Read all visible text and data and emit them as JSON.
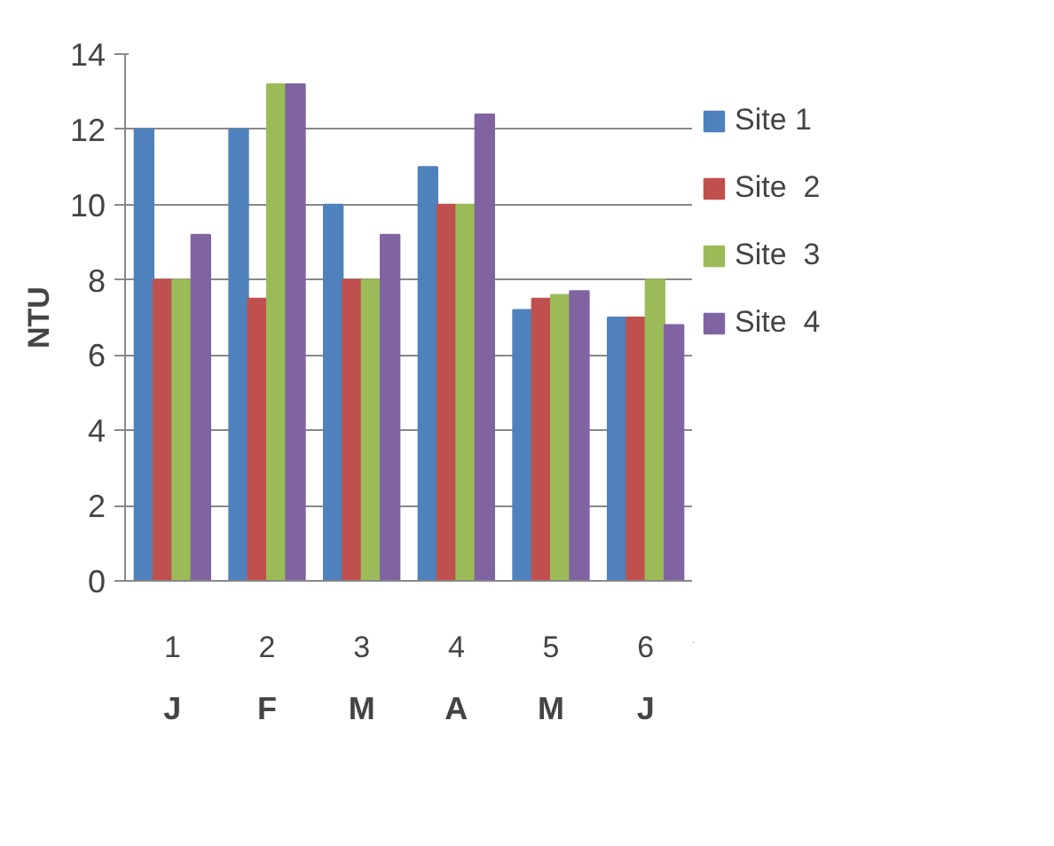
{
  "chart_data": {
    "type": "bar",
    "ylabel": "NTU",
    "categories": [
      "1",
      "2",
      "3",
      "4",
      "5",
      "6"
    ],
    "series": [
      {
        "name": "Site 1",
        "color": "#4f81bd",
        "values": [
          12,
          12,
          10,
          11,
          7.2,
          7.0
        ]
      },
      {
        "name": "Site  2",
        "color": "#c0504d",
        "values": [
          8,
          7.5,
          8,
          10,
          7.5,
          7.0
        ]
      },
      {
        "name": "Site  3",
        "color": "#9bbb59",
        "values": [
          8,
          13.2,
          8,
          10,
          7.6,
          8.0
        ]
      },
      {
        "name": "Site  4",
        "color": "#8064a2",
        "values": [
          9.2,
          13.2,
          9.2,
          12.4,
          7.7,
          6.8
        ]
      }
    ],
    "annotations": [
      "J",
      "F",
      "M",
      "A",
      "M",
      "J"
    ],
    "ylim": [
      0,
      14
    ],
    "yticks": [
      0,
      2,
      4,
      6,
      8,
      10,
      12,
      14
    ],
    "grid": "y",
    "legend": "right"
  }
}
